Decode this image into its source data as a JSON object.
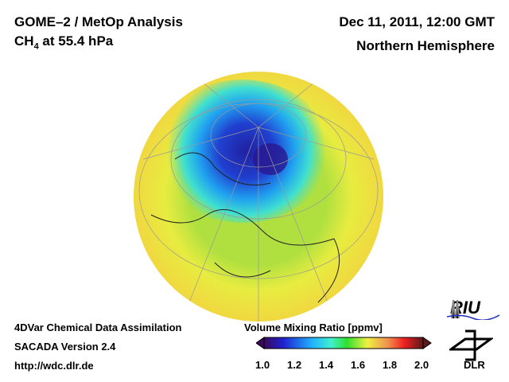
{
  "header": {
    "title": "GOME–2 / MetOp Analysis",
    "species_prefix": "CH",
    "species_sub": "4",
    "species_suffix": " at 55.4 hPa",
    "datetime": "Dec 11, 2011, 12:00 GMT",
    "region": "Northern Hemisphere"
  },
  "footer": {
    "line1": "4DVar Chemical Data Assimilation",
    "line2": "SACADA Version 2.4",
    "line3": "http://wdc.dlr.de"
  },
  "colorbar": {
    "title": "Volume Mixing Ratio [ppmv]",
    "ticks": [
      "1.0",
      "1.2",
      "1.4",
      "1.6",
      "1.8",
      "2.0"
    ],
    "range": [
      1.0,
      2.0
    ],
    "colors": [
      "#3a0a5a",
      "#2020d0",
      "#20a0ff",
      "#40f0e0",
      "#30e030",
      "#f0f040",
      "#f0a050",
      "#f02020",
      "#5a1a1a"
    ]
  },
  "logos": {
    "riu": "RIU",
    "dlr": "DLR"
  }
}
